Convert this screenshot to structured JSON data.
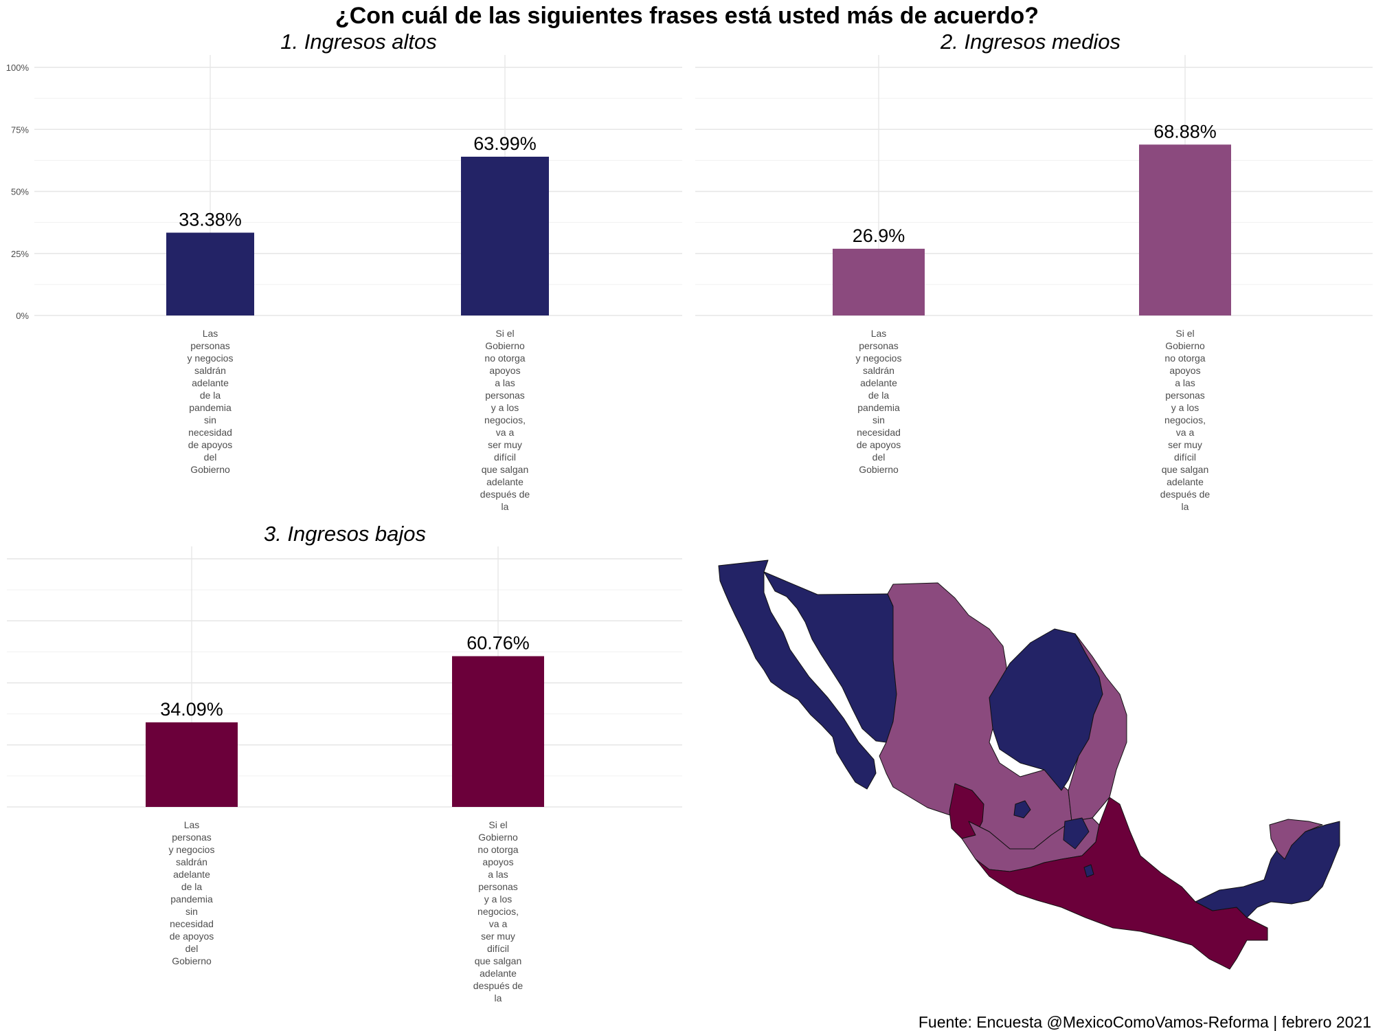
{
  "title": "¿Con cuál de las siguientes frases está usted más de acuerdo?",
  "caption": "Fuente: Encuesta @MexicoComoVamos-Reforma | febrero 2021",
  "colors": {
    "altos": "#232366",
    "medios": "#8b4a7e",
    "bajos": "#6b003a"
  },
  "chart_data": [
    {
      "type": "bar",
      "title": "1. Ingresos altos",
      "categories": [
        "Las personas y negocios saldrán adelante de la pandemia sin necesidad de apoyos del Gobierno",
        "Si el Gobierno no otorga apoyos a las personas y a los negocios, va a ser muy difícil que salgan adelante después de la"
      ],
      "values": [
        33.38,
        63.99
      ],
      "value_labels": [
        "33.38%",
        "63.99%"
      ],
      "ylim": [
        0,
        100
      ],
      "yticks": [
        "0%",
        "25%",
        "50%",
        "75%",
        "100%"
      ],
      "grid": true
    },
    {
      "type": "bar",
      "title": "2. Ingresos medios",
      "categories": [
        "Las personas y negocios saldrán adelante de la pandemia sin necesidad de apoyos del Gobierno",
        "Si el Gobierno no otorga apoyos a las personas y a los negocios, va a ser muy difícil que salgan adelante después de la"
      ],
      "values": [
        26.9,
        68.88
      ],
      "value_labels": [
        "26.9%",
        "68.88%"
      ],
      "ylim": [
        0,
        100
      ],
      "grid": true
    },
    {
      "type": "bar",
      "title": "3. Ingresos bajos",
      "categories": [
        "Las personas y negocios saldrán adelante de la pandemia sin necesidad de apoyos del Gobierno",
        "Si el Gobierno no otorga apoyos a las personas y a los negocios, va a ser muy difícil que salgan adelante después de la"
      ],
      "values": [
        34.09,
        60.76
      ],
      "value_labels": [
        "34.09%",
        "60.76%"
      ],
      "ylim": [
        0,
        100
      ],
      "grid": true
    }
  ],
  "x_label_lines": [
    [
      "Las",
      "personas",
      "y negocios",
      "saldrán",
      "adelante",
      "de la",
      "pandemia",
      "sin",
      "necesidad",
      "de apoyos",
      "del",
      "Gobierno"
    ],
    [
      "Si el",
      "Gobierno",
      "no otorga",
      "apoyos",
      "a las",
      "personas",
      "y a los",
      "negocios,",
      "va a",
      "ser muy",
      "difícil",
      "que salgan",
      "adelante",
      "después de",
      "la"
    ]
  ],
  "x_label_lines_medios": [
    [
      "Las",
      "personas",
      "y negocios",
      "saldrán",
      "adelante",
      "de la",
      "pandemia",
      "sin",
      "necesidad",
      "de apoyos",
      "del",
      "Gobierno"
    ],
    [
      "Si el",
      "Gobierno",
      "no otorga",
      "apoyos",
      "a las",
      "personas",
      "y a los",
      "negocios,",
      "va a",
      "ser muy",
      "difícil",
      "que salgan",
      "adelante",
      "después de",
      "la"
    ]
  ],
  "map": {
    "regions": {
      "altos": "Ingresos altos",
      "medios": "Ingresos medios",
      "bajos": "Ingresos bajos"
    }
  }
}
